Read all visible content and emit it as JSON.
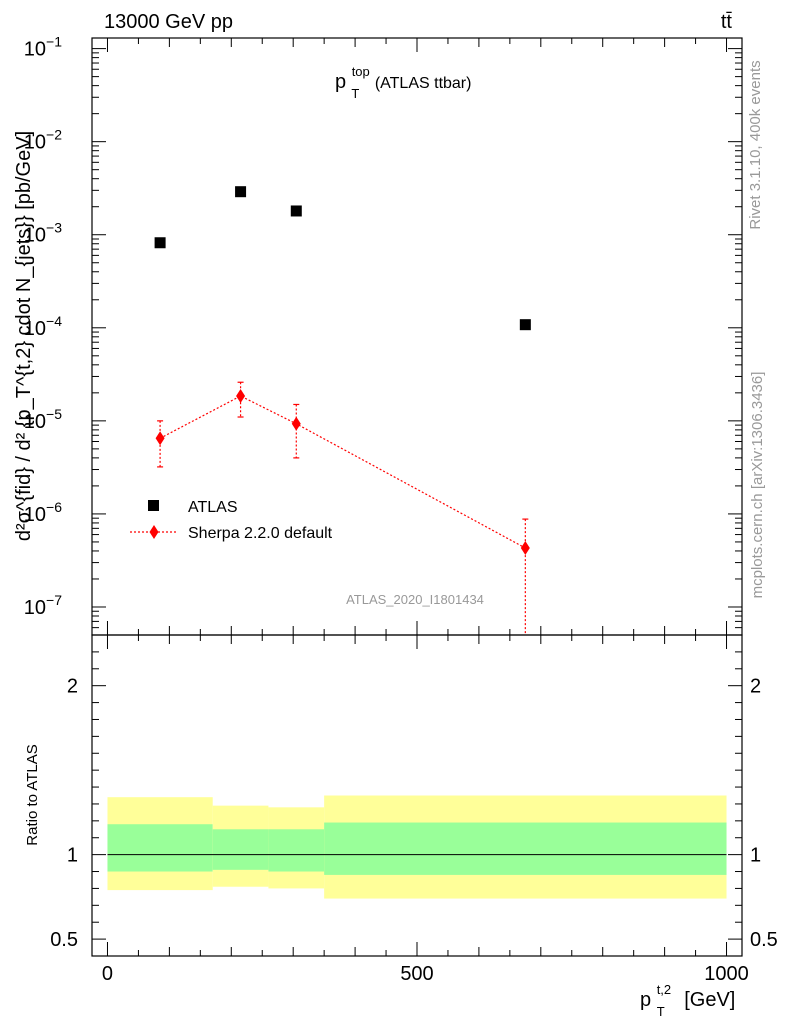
{
  "header": {
    "energy_label": "13000 GeV pp",
    "process_label": "tt̄"
  },
  "side_labels": {
    "rivet": "Rivet 3.1.10,  400k events",
    "mcplots": "mcplots.cern.ch [arXiv:1306.3436]"
  },
  "chart_data": [
    {
      "type": "scatter",
      "title_main": "p",
      "title_sup": "top",
      "title_sub": "T",
      "title_rest": "(ATLAS ttbar)",
      "analysis_id": "ATLAS_2020_I1801434",
      "ylabel": "d²σ^{fid} / d² {p_T^{t,2} cdot N_{jets}} [pb/GeV]",
      "y_log": true,
      "ylim": [
        5e-08,
        0.13
      ],
      "y_ticks": [
        1e-07,
        1e-06,
        1e-05,
        0.0001,
        0.001,
        0.01,
        0.1
      ],
      "y_tick_labels": [
        {
          "base": "10",
          "exp": "−7"
        },
        {
          "base": "10",
          "exp": "−6"
        },
        {
          "base": "10",
          "exp": "−5"
        },
        {
          "base": "10",
          "exp": "−4"
        },
        {
          "base": "10",
          "exp": "−3"
        },
        {
          "base": "10",
          "exp": "−2"
        },
        {
          "base": "10",
          "exp": "−1"
        }
      ],
      "series": [
        {
          "name": "ATLAS",
          "marker": "square",
          "color": "#000000",
          "points": [
            {
              "x": 85,
              "y": 0.00082
            },
            {
              "x": 215,
              "y": 0.0029
            },
            {
              "x": 305,
              "y": 0.0018
            },
            {
              "x": 675,
              "y": 0.000108
            }
          ]
        },
        {
          "name": "Sherpa 2.2.0 default",
          "marker": "diamond",
          "line": "dotted",
          "color": "#ff0000",
          "points": [
            {
              "x": 85,
              "y": 6.5e-06,
              "ylo": 3.2e-06,
              "yhi": 1e-05
            },
            {
              "x": 215,
              "y": 1.85e-05,
              "ylo": 1.1e-05,
              "yhi": 2.6e-05
            },
            {
              "x": 305,
              "y": 9.3e-06,
              "ylo": 4e-06,
              "yhi": 1.5e-05
            },
            {
              "x": 675,
              "y": 4.3e-07,
              "ylo": 5e-08,
              "yhi": 8.8e-07
            }
          ]
        }
      ],
      "legend": "middle-left"
    },
    {
      "type": "area",
      "ylabel": "Ratio to ATLAS",
      "xlabel_main": "p",
      "xlabel_sup": "t,2",
      "xlabel_sub": "T",
      "xlabel_unit": "[GeV]",
      "xlim": [
        -25,
        1025
      ],
      "ylim": [
        0.4,
        2.3
      ],
      "x_ticks": [
        0,
        500,
        1000
      ],
      "x_tick_labels": [
        "0",
        "500",
        "1000"
      ],
      "y_ticks": [
        0.5,
        1,
        2
      ],
      "y_tick_labels": [
        "0.5",
        "1",
        "2"
      ],
      "reference_line": 1,
      "bins": [
        {
          "xlo": 0,
          "xhi": 170,
          "green_lo": 0.9,
          "green_hi": 1.18,
          "yellow_lo": 0.79,
          "yellow_hi": 1.34
        },
        {
          "xlo": 170,
          "xhi": 260,
          "green_lo": 0.91,
          "green_hi": 1.15,
          "yellow_lo": 0.81,
          "yellow_hi": 1.29
        },
        {
          "xlo": 260,
          "xhi": 350,
          "green_lo": 0.9,
          "green_hi": 1.15,
          "yellow_lo": 0.8,
          "yellow_hi": 1.28
        },
        {
          "xlo": 350,
          "xhi": 1000,
          "green_lo": 0.88,
          "green_hi": 1.19,
          "yellow_lo": 0.74,
          "yellow_hi": 1.35
        }
      ],
      "colors": {
        "green": "#99ff99",
        "yellow": "#ffff99"
      }
    }
  ]
}
